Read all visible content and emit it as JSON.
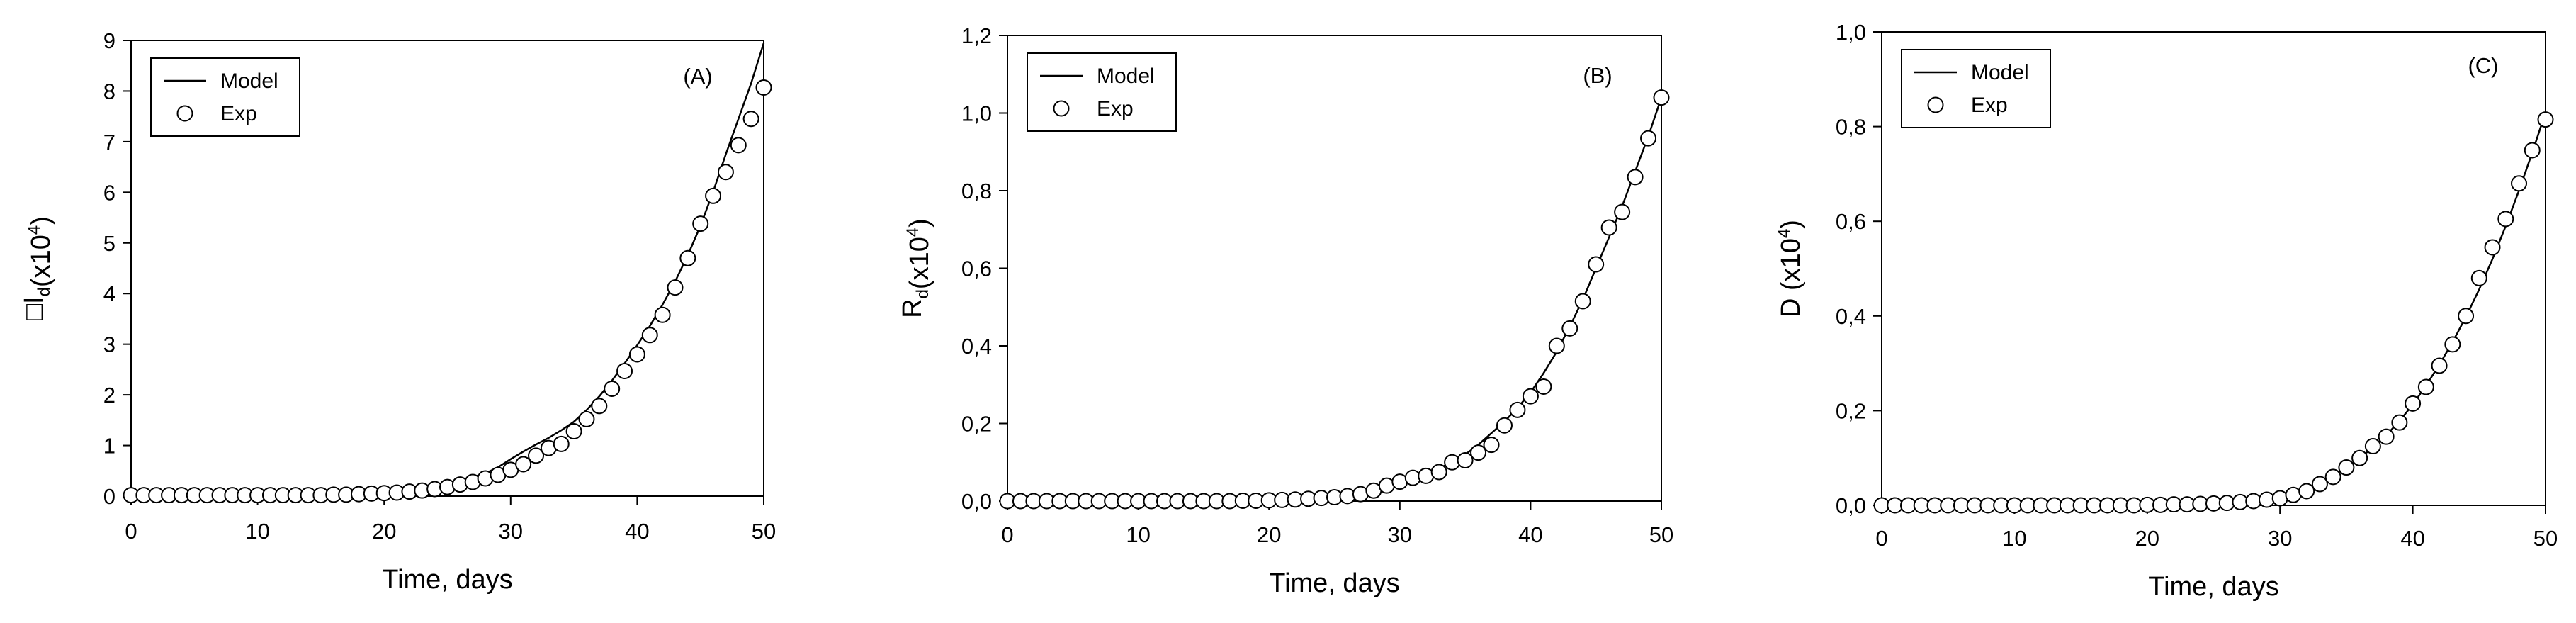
{
  "chart_data": [
    {
      "type": "line",
      "panel_label": "(A)",
      "xlabel": "Time, days",
      "ylabel_main": "I",
      "ylabel_sub": "d",
      "ylabel_prefix": "□",
      "ylabel_pre": "(x10",
      "ylabel_sup": "4",
      "ylabel_post": ")",
      "xlim": [
        0,
        50
      ],
      "ylim": [
        0,
        9
      ],
      "xticks": [
        0,
        10,
        20,
        30,
        40,
        50
      ],
      "yticks": [
        0,
        1,
        2,
        3,
        4,
        5,
        6,
        7,
        8,
        9
      ],
      "yticks_labels": [
        "0",
        "1",
        "2",
        "3",
        "4",
        "5",
        "6",
        "7",
        "8",
        "9"
      ],
      "legend_position": "top-left",
      "grid": false,
      "series": [
        {
          "name": "Model",
          "style": "line",
          "x": [
            0,
            10,
            15,
            20,
            22,
            24,
            26,
            28,
            29,
            30,
            31,
            32,
            33,
            34,
            35,
            36,
            37,
            38,
            39,
            40,
            41,
            42,
            43,
            44,
            45,
            46,
            47,
            48,
            49,
            50
          ],
          "y": [
            0,
            0,
            0.01,
            0.06,
            0.11,
            0.19,
            0.3,
            0.45,
            0.57,
            0.73,
            0.88,
            1.02,
            1.15,
            1.3,
            1.47,
            1.7,
            1.97,
            2.28,
            2.62,
            2.98,
            3.36,
            3.78,
            4.24,
            4.76,
            5.34,
            6.01,
            6.75,
            7.45,
            8.15,
            8.95
          ]
        },
        {
          "name": "Exp",
          "style": "marker",
          "x": [
            0,
            1,
            2,
            3,
            4,
            5,
            6,
            7,
            8,
            9,
            10,
            11,
            12,
            13,
            14,
            15,
            16,
            17,
            18,
            19,
            20,
            21,
            22,
            23,
            24,
            25,
            26,
            27,
            28,
            29,
            30,
            31,
            32,
            33,
            34,
            35,
            36,
            37,
            38,
            39,
            40,
            41,
            42,
            43,
            44,
            45,
            46,
            47,
            48,
            49,
            50
          ],
          "y": [
            0.02,
            0.02,
            0.02,
            0.02,
            0.02,
            0.02,
            0.02,
            0.02,
            0.02,
            0.02,
            0.02,
            0.02,
            0.02,
            0.02,
            0.02,
            0.02,
            0.03,
            0.03,
            0.04,
            0.05,
            0.06,
            0.07,
            0.09,
            0.11,
            0.14,
            0.18,
            0.23,
            0.28,
            0.35,
            0.42,
            0.52,
            0.63,
            0.8,
            0.95,
            1.03,
            1.28,
            1.52,
            1.78,
            2.12,
            2.47,
            2.8,
            3.18,
            3.58,
            4.12,
            4.7,
            5.38,
            5.93,
            6.4,
            6.93,
            7.45,
            8.07
          ]
        }
      ]
    },
    {
      "type": "line",
      "panel_label": "(B)",
      "xlabel": "Time, days",
      "ylabel_main": "R",
      "ylabel_sub": "d",
      "ylabel_prefix": "",
      "ylabel_pre": "(x10",
      "ylabel_sup": "4",
      "ylabel_post": ")",
      "xlim": [
        0,
        50
      ],
      "ylim": [
        0,
        1.2
      ],
      "xticks": [
        0,
        10,
        20,
        30,
        40,
        50
      ],
      "yticks": [
        0,
        0.2,
        0.4,
        0.6,
        0.8,
        1.0,
        1.2
      ],
      "yticks_labels": [
        "0,0",
        "0,2",
        "0,4",
        "0,6",
        "0,8",
        "1,0",
        "1,2"
      ],
      "legend_position": "top-left",
      "grid": false,
      "series": [
        {
          "name": "Model",
          "style": "line",
          "x": [
            0,
            10,
            15,
            20,
            22,
            24,
            26,
            28,
            30,
            32,
            33,
            34,
            35,
            36,
            37,
            38,
            39,
            40,
            41,
            42,
            43,
            44,
            45,
            46,
            47,
            48,
            49,
            50
          ],
          "y": [
            0,
            0,
            0,
            0.002,
            0.005,
            0.01,
            0.018,
            0.03,
            0.048,
            0.07,
            0.085,
            0.1,
            0.12,
            0.145,
            0.175,
            0.205,
            0.24,
            0.28,
            0.33,
            0.385,
            0.45,
            0.52,
            0.6,
            0.68,
            0.76,
            0.85,
            0.94,
            1.04
          ]
        },
        {
          "name": "Exp",
          "style": "marker",
          "x": [
            0,
            1,
            2,
            3,
            4,
            5,
            6,
            7,
            8,
            9,
            10,
            11,
            12,
            13,
            14,
            15,
            16,
            17,
            18,
            19,
            20,
            21,
            22,
            23,
            24,
            25,
            26,
            27,
            28,
            29,
            30,
            31,
            32,
            33,
            34,
            35,
            36,
            37,
            38,
            39,
            40,
            41,
            42,
            43,
            44,
            45,
            46,
            47,
            48,
            49,
            50
          ],
          "y": [
            0.0,
            0.0,
            0.0,
            0.0,
            0.0,
            0.0,
            0.0,
            0.0,
            0.0,
            0.0,
            0.0,
            0.0,
            0.0,
            0.0,
            0.0,
            0.0,
            0.0,
            0.0,
            0.001,
            0.001,
            0.002,
            0.003,
            0.004,
            0.006,
            0.008,
            0.01,
            0.013,
            0.018,
            0.027,
            0.04,
            0.05,
            0.06,
            0.065,
            0.075,
            0.1,
            0.105,
            0.125,
            0.145,
            0.195,
            0.235,
            0.27,
            0.295,
            0.4,
            0.445,
            0.515,
            0.61,
            0.705,
            0.745,
            0.835,
            0.935,
            1.04
          ]
        }
      ]
    },
    {
      "type": "line",
      "panel_label": "(C)",
      "xlabel": "Time, days",
      "ylabel_main": "D",
      "ylabel_sub": "",
      "ylabel_prefix": "",
      "ylabel_pre": " (x10",
      "ylabel_sup": "4",
      "ylabel_post": ")",
      "xlim": [
        0,
        50
      ],
      "ylim": [
        0,
        1.0
      ],
      "xticks": [
        0,
        10,
        20,
        30,
        40,
        50
      ],
      "yticks": [
        0,
        0.2,
        0.4,
        0.6,
        0.8,
        1.0
      ],
      "yticks_labels": [
        "0,0",
        "0,2",
        "0,4",
        "0,6",
        "0,8",
        "1,0"
      ],
      "legend_position": "top-left",
      "grid": false,
      "series": [
        {
          "name": "Model",
          "style": "line",
          "x": [
            0,
            10,
            20,
            24,
            26,
            28,
            30,
            31,
            32,
            33,
            34,
            35,
            36,
            37,
            38,
            39,
            40,
            41,
            42,
            43,
            44,
            45,
            46,
            47,
            48,
            49,
            50
          ],
          "y": [
            0,
            0,
            0.001,
            0.003,
            0.006,
            0.01,
            0.018,
            0.025,
            0.035,
            0.048,
            0.063,
            0.08,
            0.1,
            0.122,
            0.148,
            0.178,
            0.213,
            0.253,
            0.297,
            0.345,
            0.398,
            0.456,
            0.52,
            0.59,
            0.665,
            0.745,
            0.83
          ]
        },
        {
          "name": "Exp",
          "style": "marker",
          "x": [
            0,
            1,
            2,
            3,
            4,
            5,
            6,
            7,
            8,
            9,
            10,
            11,
            12,
            13,
            14,
            15,
            16,
            17,
            18,
            19,
            20,
            21,
            22,
            23,
            24,
            25,
            26,
            27,
            28,
            29,
            30,
            31,
            32,
            33,
            34,
            35,
            36,
            37,
            38,
            39,
            40,
            41,
            42,
            43,
            44,
            45,
            46,
            47,
            48,
            49,
            50
          ],
          "y": [
            0.0,
            0.0,
            0.0,
            0.0,
            0.0,
            0.0,
            0.0,
            0.0,
            0.0,
            0.0,
            0.0,
            0.0,
            0.0,
            0.0,
            0.0,
            0.0,
            0.0,
            0.0,
            0.0,
            0.0,
            0.001,
            0.001,
            0.002,
            0.002,
            0.003,
            0.004,
            0.005,
            0.007,
            0.009,
            0.012,
            0.015,
            0.022,
            0.03,
            0.045,
            0.06,
            0.08,
            0.1,
            0.125,
            0.145,
            0.175,
            0.215,
            0.25,
            0.295,
            0.34,
            0.4,
            0.48,
            0.545,
            0.605,
            0.68,
            0.75,
            0.815
          ]
        }
      ]
    }
  ]
}
